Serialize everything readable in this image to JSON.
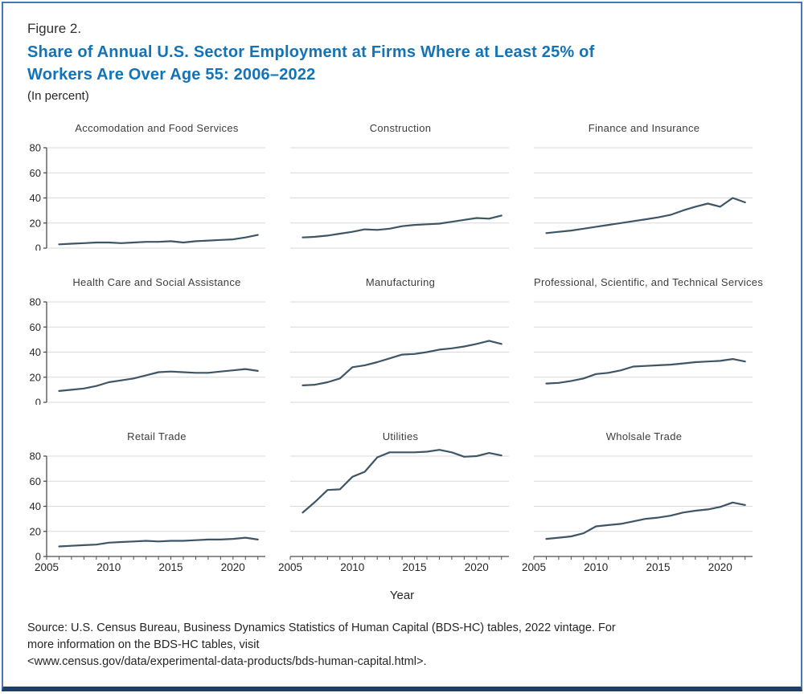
{
  "page": {
    "figure_label": "Figure 2.",
    "title": "Share of Annual U.S. Sector Employment at Firms Where at Least 25% of Workers Are Over Age 55: 2006–2022",
    "subtitle": "(In percent)",
    "x_axis_title": "Year",
    "source_lines": [
      "Source: U.S. Census Bureau, Business Dynamics Statistics of Human Capital (BDS-HC) tables, 2022 vintage. For",
      "more information on the BDS-HC tables, visit",
      "<www.census.gov/data/experimental-data-products/bds-human-capital.html>."
    ],
    "colors": {
      "title_blue": "#1273b9",
      "border_blue": "#4577b4",
      "bottom_bar_navy": "#1e3f66",
      "series_line": "#3d5564",
      "gridline": "#d9d9d9",
      "axis": "#4d4d4d",
      "tick_text": "#262626",
      "chart_title_gray": "#3d3d3d"
    }
  },
  "chart_data": {
    "type": "line",
    "layout": "3x3 small multiples",
    "title": "Share of Annual U.S. Sector Employment at Firms Where at Least 25% of Workers Are Over Age 55: 2006–2022",
    "units": "percent",
    "xlabel": "Year",
    "ylabel": "",
    "grid": true,
    "legend": "none",
    "ylim": [
      0,
      80
    ],
    "y_ticks": [
      0,
      20,
      40,
      60,
      80
    ],
    "x_ticks_minor_every_year": [
      2005,
      2022
    ],
    "x_tick_labels": [
      2005,
      2010,
      2015,
      2020
    ],
    "x": [
      2006,
      2007,
      2008,
      2009,
      2010,
      2011,
      2012,
      2013,
      2014,
      2015,
      2016,
      2017,
      2018,
      2019,
      2020,
      2021,
      2022
    ],
    "series": [
      {
        "name": "Accomodation and Food Services",
        "values": [
          3,
          3.5,
          4,
          4.5,
          4.5,
          4,
          4.5,
          5,
          5,
          5.5,
          4.5,
          5.5,
          6,
          6.5,
          7,
          8.5,
          10.5
        ]
      },
      {
        "name": "Construction",
        "values": [
          8.5,
          9,
          10,
          11.5,
          13,
          15,
          14.5,
          15.5,
          17.5,
          18.5,
          19,
          19.5,
          21,
          22.5,
          24,
          23.5,
          26
        ]
      },
      {
        "name": "Finance and Insurance",
        "values": [
          12,
          13,
          14,
          15.5,
          17,
          18.5,
          20,
          21.5,
          23,
          24.5,
          26.5,
          30,
          33,
          35.5,
          33,
          40,
          36.5
        ]
      },
      {
        "name": "Health Care and Social Assistance",
        "values": [
          9,
          10,
          11,
          13,
          16,
          17.5,
          19,
          21.5,
          24,
          24.5,
          24,
          23.5,
          23.5,
          24.5,
          25.5,
          26.5,
          25
        ]
      },
      {
        "name": "Manufacturing",
        "values": [
          13.5,
          14,
          16,
          19,
          28,
          29.5,
          32,
          35,
          38,
          38.5,
          40,
          42,
          43,
          44.5,
          46.5,
          49,
          46.5
        ]
      },
      {
        "name": "Professional, Scientific, and Technical Services",
        "values": [
          15,
          15.5,
          17,
          19,
          22.5,
          23.5,
          25.5,
          28.5,
          29,
          29.5,
          30,
          31,
          32,
          32.5,
          33,
          34.5,
          32.5
        ]
      },
      {
        "name": "Retail Trade",
        "values": [
          8,
          8.5,
          9,
          9.5,
          11,
          11.5,
          12,
          12.5,
          12,
          12.5,
          12.5,
          13,
          13.5,
          13.5,
          14,
          15,
          13.5
        ]
      },
      {
        "name": "Utilities",
        "values": [
          35,
          43.5,
          53,
          53.5,
          63.5,
          67.5,
          79,
          83,
          83,
          83,
          83.5,
          85,
          83,
          79.5,
          80,
          82.5,
          80.5
        ]
      },
      {
        "name": "Wholsale Trade",
        "values": [
          14,
          15,
          16,
          18.5,
          24,
          25,
          26,
          28,
          30,
          31,
          32.5,
          35,
          36.5,
          37.5,
          39.5,
          43,
          41
        ]
      }
    ]
  }
}
